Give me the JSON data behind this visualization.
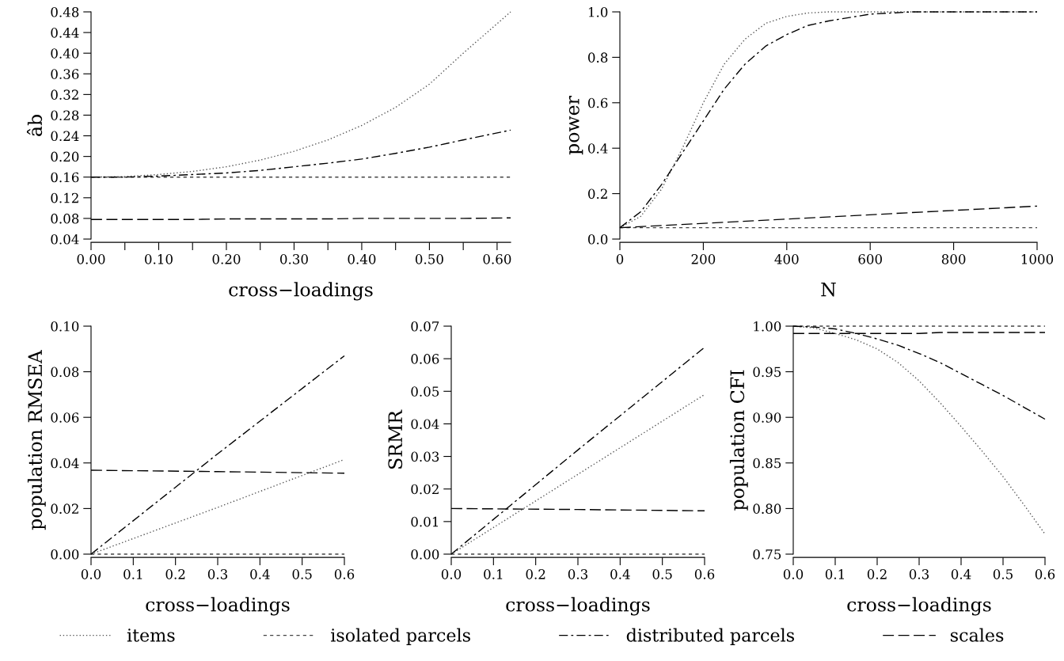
{
  "chart_data": [
    {
      "type": "line",
      "xlabel": "cross−loadings",
      "ylabel": "âb",
      "legend": "bottom",
      "grid": false,
      "x": [
        0,
        0.05,
        0.1,
        0.15,
        0.2,
        0.25,
        0.3,
        0.35,
        0.4,
        0.45,
        0.5,
        0.55,
        0.62
      ],
      "xlim": [
        0,
        0.62
      ],
      "ylim": [
        0.04,
        0.48
      ],
      "xticks": [
        {
          "value": 0,
          "label": "0.00"
        },
        {
          "value": 0.05,
          "label": null
        },
        {
          "value": 0.1,
          "label": "0.10"
        },
        {
          "value": 0.15,
          "label": null
        },
        {
          "value": 0.2,
          "label": "0.20"
        },
        {
          "value": 0.25,
          "label": null
        },
        {
          "value": 0.3,
          "label": "0.30"
        },
        {
          "value": 0.35,
          "label": null
        },
        {
          "value": 0.4,
          "label": "0.40"
        },
        {
          "value": 0.45,
          "label": null
        },
        {
          "value": 0.5,
          "label": "0.50"
        },
        {
          "value": 0.55,
          "label": null
        },
        {
          "value": 0.6,
          "label": "0.60"
        }
      ],
      "yticks": [
        {
          "value": 0.04,
          "label": "0.04"
        },
        {
          "value": 0.08,
          "label": "0.08"
        },
        {
          "value": 0.12,
          "label": "0.12"
        },
        {
          "value": 0.16,
          "label": "0.16"
        },
        {
          "value": 0.2,
          "label": "0.20"
        },
        {
          "value": 0.24,
          "label": "0.24"
        },
        {
          "value": 0.28,
          "label": "0.28"
        },
        {
          "value": 0.32,
          "label": "0.32"
        },
        {
          "value": 0.36,
          "label": "0.36"
        },
        {
          "value": 0.4,
          "label": "0.40"
        },
        {
          "value": 0.44,
          "label": "0.44"
        },
        {
          "value": 0.48,
          "label": "0.48"
        }
      ],
      "series": [
        {
          "name": "items",
          "color": "#555555",
          "line_style": "dotted",
          "values": [
            0.16,
            0.161,
            0.165,
            0.171,
            0.18,
            0.193,
            0.21,
            0.232,
            0.26,
            0.295,
            0.34,
            0.4,
            0.48
          ]
        },
        {
          "name": "isolated parcels",
          "color": "#444444",
          "line_style": "dashed",
          "values": [
            0.16,
            0.16,
            0.16,
            0.16,
            0.16,
            0.16,
            0.16,
            0.16,
            0.16,
            0.16,
            0.16,
            0.16,
            0.16
          ]
        },
        {
          "name": "distributed parcels",
          "color": "#000000",
          "line_style": "dashdot",
          "values": [
            0.16,
            0.16,
            0.162,
            0.165,
            0.168,
            0.173,
            0.18,
            0.187,
            0.195,
            0.206,
            0.218,
            0.232,
            0.251
          ]
        },
        {
          "name": "scales",
          "color": "#000000",
          "line_style": "longdash",
          "values": [
            0.078,
            0.078,
            0.078,
            0.078,
            0.079,
            0.079,
            0.079,
            0.079,
            0.08,
            0.08,
            0.08,
            0.08,
            0.081
          ]
        }
      ]
    },
    {
      "type": "line",
      "xlabel": "N",
      "ylabel": "power",
      "grid": false,
      "xlim": [
        0,
        1000
      ],
      "ylim": [
        0,
        1
      ],
      "xticks": [
        0,
        200,
        400,
        600,
        800,
        1000
      ],
      "yticks": [
        {
          "value": 0,
          "label": "0.0"
        },
        {
          "value": 0.2,
          "label": "0.2"
        },
        {
          "value": 0.4,
          "label": "0.4"
        },
        {
          "value": 0.6,
          "label": "0.6"
        },
        {
          "value": 0.8,
          "label": "0.8"
        },
        {
          "value": 1,
          "label": "1.0"
        }
      ],
      "series": [
        {
          "name": "items",
          "color": "#555555",
          "line_style": "dotted",
          "x": [
            0,
            50,
            100,
            150,
            200,
            250,
            300,
            350,
            400,
            450,
            500,
            600,
            1000
          ],
          "values": [
            0.05,
            0.1,
            0.22,
            0.4,
            0.6,
            0.77,
            0.88,
            0.95,
            0.98,
            0.995,
            1.0,
            1.0,
            1.0
          ]
        },
        {
          "name": "isolated parcels",
          "color": "#444444",
          "line_style": "dashed",
          "x": [
            0,
            1000
          ],
          "values": [
            0.05,
            0.05
          ]
        },
        {
          "name": "distributed parcels",
          "color": "#000000",
          "line_style": "dashdot",
          "x": [
            0,
            50,
            100,
            150,
            200,
            250,
            300,
            350,
            400,
            450,
            500,
            600,
            700,
            1000
          ],
          "values": [
            0.05,
            0.12,
            0.24,
            0.38,
            0.52,
            0.66,
            0.77,
            0.85,
            0.9,
            0.94,
            0.96,
            0.99,
            1.0,
            1.0
          ]
        },
        {
          "name": "scales",
          "color": "#000000",
          "line_style": "longdash",
          "x": [
            0,
            1000
          ],
          "values": [
            0.05,
            0.145
          ]
        }
      ]
    },
    {
      "type": "line",
      "xlabel": "cross−loadings",
      "ylabel": "population RMSEA",
      "grid": false,
      "x": [
        0,
        0.3,
        0.6
      ],
      "xlim": [
        0,
        0.6
      ],
      "ylim": [
        0,
        0.1
      ],
      "xticks": [
        {
          "value": 0,
          "label": "0.0"
        },
        {
          "value": 0.1,
          "label": "0.1"
        },
        {
          "value": 0.2,
          "label": "0.2"
        },
        {
          "value": 0.3,
          "label": "0.3"
        },
        {
          "value": 0.4,
          "label": "0.4"
        },
        {
          "value": 0.5,
          "label": "0.5"
        },
        {
          "value": 0.6,
          "label": "0.6"
        }
      ],
      "yticks": [
        {
          "value": 0,
          "label": "0.00"
        },
        {
          "value": 0.02,
          "label": "0.02"
        },
        {
          "value": 0.04,
          "label": "0.04"
        },
        {
          "value": 0.06,
          "label": "0.06"
        },
        {
          "value": 0.08,
          "label": "0.08"
        },
        {
          "value": 0.1,
          "label": "0.10"
        }
      ],
      "series": [
        {
          "name": "items",
          "color": "#555555",
          "line_style": "dotted",
          "values": [
            0,
            0.0205,
            0.0415
          ]
        },
        {
          "name": "isolated parcels",
          "color": "#444444",
          "line_style": "dashed",
          "values": [
            0,
            0,
            0
          ]
        },
        {
          "name": "distributed parcels",
          "color": "#000000",
          "line_style": "dashdot",
          "values": [
            0,
            0.044,
            0.087
          ]
        },
        {
          "name": "scales",
          "color": "#000000",
          "line_style": "longdash",
          "values": [
            0.0368,
            0.0362,
            0.0355
          ]
        }
      ]
    },
    {
      "type": "line",
      "xlabel": "cross−loadings",
      "ylabel": "SRMR",
      "grid": false,
      "x": [
        0,
        0.3,
        0.6
      ],
      "xlim": [
        0,
        0.6
      ],
      "ylim": [
        0,
        0.07
      ],
      "xticks": [
        {
          "value": 0,
          "label": "0.0"
        },
        {
          "value": 0.1,
          "label": "0.1"
        },
        {
          "value": 0.2,
          "label": "0.2"
        },
        {
          "value": 0.3,
          "label": "0.3"
        },
        {
          "value": 0.4,
          "label": "0.4"
        },
        {
          "value": 0.5,
          "label": "0.5"
        },
        {
          "value": 0.6,
          "label": "0.6"
        }
      ],
      "yticks": [
        {
          "value": 0,
          "label": "0.00"
        },
        {
          "value": 0.01,
          "label": "0.01"
        },
        {
          "value": 0.02,
          "label": "0.02"
        },
        {
          "value": 0.03,
          "label": "0.03"
        },
        {
          "value": 0.04,
          "label": "0.04"
        },
        {
          "value": 0.05,
          "label": "0.05"
        },
        {
          "value": 0.06,
          "label": "0.06"
        },
        {
          "value": 0.07,
          "label": "0.07"
        }
      ],
      "series": [
        {
          "name": "items",
          "color": "#555555",
          "line_style": "dotted",
          "values": [
            0,
            0.0245,
            0.049
          ]
        },
        {
          "name": "isolated parcels",
          "color": "#444444",
          "line_style": "dashed",
          "values": [
            0,
            0,
            0
          ]
        },
        {
          "name": "distributed parcels",
          "color": "#000000",
          "line_style": "dashdot",
          "values": [
            0,
            0.032,
            0.0635
          ]
        },
        {
          "name": "scales",
          "color": "#000000",
          "line_style": "longdash",
          "values": [
            0.014,
            0.0137,
            0.0133
          ]
        }
      ]
    },
    {
      "type": "line",
      "xlabel": "cross−loadings",
      "ylabel": "population CFI",
      "grid": false,
      "x": [
        0,
        0.05,
        0.1,
        0.15,
        0.2,
        0.25,
        0.3,
        0.35,
        0.4,
        0.45,
        0.5,
        0.55,
        0.6
      ],
      "xlim": [
        0,
        0.6
      ],
      "ylim": [
        0.75,
        1.0
      ],
      "xticks": [
        {
          "value": 0,
          "label": "0.0"
        },
        {
          "value": 0.1,
          "label": "0.1"
        },
        {
          "value": 0.2,
          "label": "0.2"
        },
        {
          "value": 0.3,
          "label": "0.3"
        },
        {
          "value": 0.4,
          "label": "0.4"
        },
        {
          "value": 0.5,
          "label": "0.5"
        },
        {
          "value": 0.6,
          "label": "0.6"
        }
      ],
      "yticks": [
        {
          "value": 0.75,
          "label": "0.75"
        },
        {
          "value": 0.8,
          "label": "0.80"
        },
        {
          "value": 0.85,
          "label": "0.85"
        },
        {
          "value": 0.9,
          "label": "0.90"
        },
        {
          "value": 0.95,
          "label": "0.95"
        },
        {
          "value": 1.0,
          "label": "1.00"
        }
      ],
      "series": [
        {
          "name": "items",
          "color": "#555555",
          "line_style": "dotted",
          "values": [
            1.0,
            0.998,
            0.992,
            0.985,
            0.975,
            0.96,
            0.94,
            0.916,
            0.89,
            0.863,
            0.835,
            0.804,
            0.772
          ]
        },
        {
          "name": "isolated parcels",
          "color": "#444444",
          "line_style": "dashed",
          "values": [
            1.0,
            1.0,
            1.0,
            1.0,
            1.0,
            1.0,
            1.0,
            1.0,
            1.0,
            1.0,
            1.0,
            1.0,
            1.0
          ]
        },
        {
          "name": "distributed parcels",
          "color": "#000000",
          "line_style": "dashdot",
          "values": [
            1.0,
            0.999,
            0.997,
            0.992,
            0.986,
            0.979,
            0.97,
            0.96,
            0.948,
            0.936,
            0.924,
            0.911,
            0.898
          ]
        },
        {
          "name": "scales",
          "color": "#000000",
          "line_style": "longdash",
          "values": [
            0.992,
            0.992,
            0.992,
            0.992,
            0.992,
            0.992,
            0.992,
            0.993,
            0.993,
            0.993,
            0.993,
            0.993,
            0.993
          ]
        }
      ]
    }
  ]
}
